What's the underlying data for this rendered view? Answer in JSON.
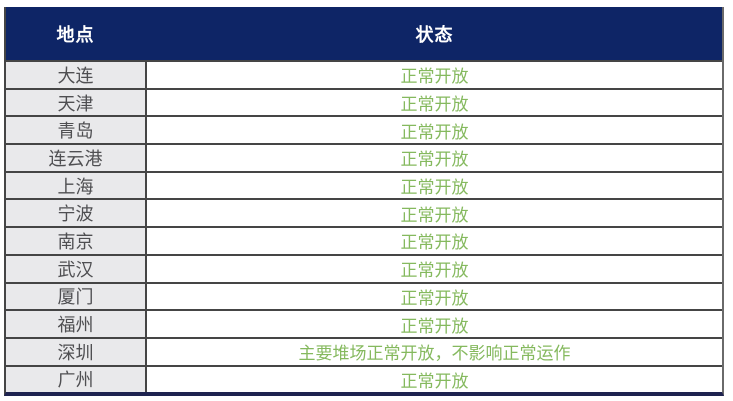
{
  "table": {
    "headers": {
      "location": "地点",
      "status": "状态"
    },
    "rows": [
      {
        "location": "大连",
        "status": "正常开放"
      },
      {
        "location": "天津",
        "status": "正常开放"
      },
      {
        "location": "青岛",
        "status": "正常开放"
      },
      {
        "location": "连云港",
        "status": "正常开放"
      },
      {
        "location": "上海",
        "status": "正常开放"
      },
      {
        "location": "宁波",
        "status": "正常开放"
      },
      {
        "location": "南京",
        "status": "正常开放"
      },
      {
        "location": "武汉",
        "status": "正常开放"
      },
      {
        "location": "厦门",
        "status": "正常开放"
      },
      {
        "location": "福州",
        "status": "正常开放"
      },
      {
        "location": "深圳",
        "status": "主要堆场正常开放，不影响正常运作"
      },
      {
        "location": "广州",
        "status": "正常开放"
      }
    ]
  },
  "colors": {
    "header_bg": "#0E2566",
    "header_text": "#FFFFFF",
    "status_green": "#85B95E",
    "location_cell_bg": "#E9E9EB",
    "location_text": "#4F4F52",
    "grid_line": "#454545",
    "outer_right_border": "#6A6A6A",
    "bottom_bar": "#1E2350"
  }
}
